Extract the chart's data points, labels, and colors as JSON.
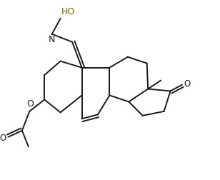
{
  "background_color": "#ffffff",
  "line_color": "#1a1a1a",
  "line_width": 1.4,
  "ho_color": "#806000",
  "o_color": "#1a1a1a",
  "n_color": "#1a1a1a",
  "figsize": [
    3.08,
    2.52
  ],
  "dpi": 100,
  "xlim": [
    0,
    10
  ],
  "ylim": [
    0,
    8.2
  ]
}
